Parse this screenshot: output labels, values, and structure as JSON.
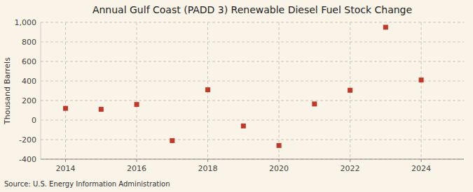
{
  "chart_data": {
    "type": "scatter",
    "title": "Annual Gulf Coast (PADD 3) Renewable Diesel Fuel Stock Change",
    "ylabel": "Thousand Barrels",
    "annotation": "Source: U.S. Energy Information Administration",
    "x": [
      2014,
      2015,
      2016,
      2017,
      2018,
      2019,
      2020,
      2021,
      2022,
      2023,
      2024
    ],
    "values": [
      120,
      110,
      160,
      -210,
      310,
      -60,
      -260,
      165,
      305,
      950,
      410
    ],
    "color": "#C0392B",
    "marker": "square",
    "xlim": [
      2013.3,
      2025.2
    ],
    "ylim": [
      -400,
      1000
    ],
    "xticks": [
      2014,
      2016,
      2018,
      2020,
      2022,
      2024
    ],
    "yticks": [
      -400,
      -200,
      0,
      200,
      400,
      600,
      800,
      {
        "value": 1000,
        "label": "1,000"
      }
    ],
    "grid": true
  }
}
